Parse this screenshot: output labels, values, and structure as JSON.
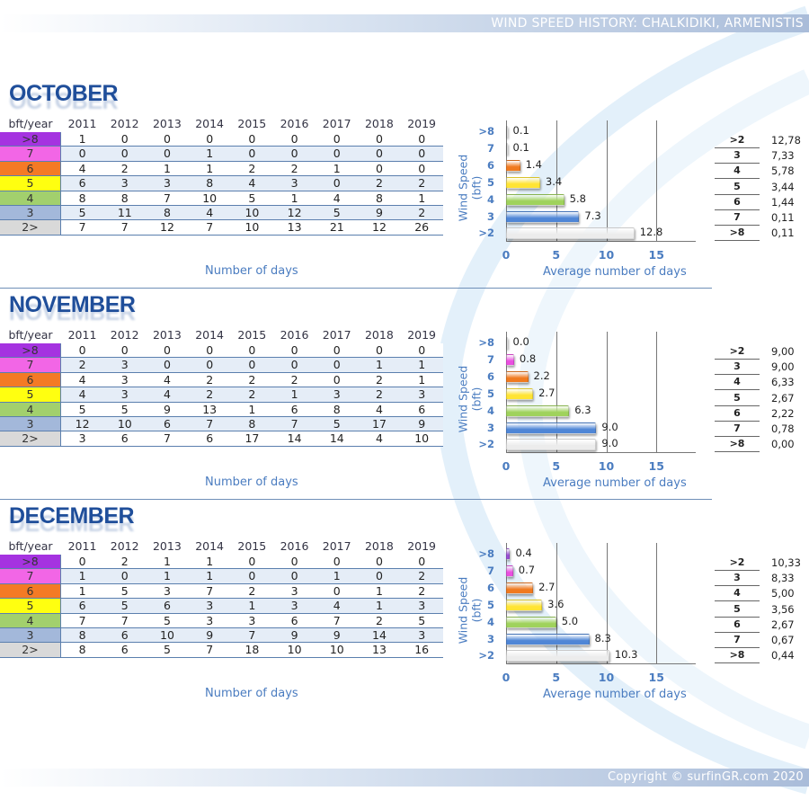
{
  "header": {
    "title": "WIND SPEED HISTORY: CHALKIDIKI, ARMENISTIS"
  },
  "footer": {
    "copyright": "Copyright © surfinGR.com 2020"
  },
  "table_header": "bft/year",
  "years": [
    "2011",
    "2012",
    "2013",
    "2014",
    "2015",
    "2016",
    "2017",
    "2018",
    "2019"
  ],
  "row_labels": [
    ">8",
    "7",
    "6",
    "5",
    "4",
    "3",
    "2>"
  ],
  "row_colors": [
    "#a533e0",
    "#f266e6",
    "#f47a25",
    "#ffff10",
    "#a2d06d",
    "#a3b8da",
    "#d9d9d9"
  ],
  "xlabel_table": "Number of days",
  "chart_data": [
    {
      "type": "bar",
      "orientation": "horizontal",
      "title": "OCTOBER",
      "xlabel": "Average number of days",
      "ylabel": "Wind Speed (bft)",
      "xlim": [
        0,
        15
      ],
      "xticks": [
        "0",
        "5",
        "10",
        "15"
      ],
      "categories": [
        ">8",
        "7",
        "6",
        "5",
        "4",
        "3",
        ">2"
      ],
      "values": [
        0.1,
        0.1,
        1.4,
        3.4,
        5.8,
        7.3,
        12.8
      ],
      "value_labels": [
        "0.1",
        "0.1",
        "1.4",
        "3.4",
        "5.8",
        "7.3",
        "12.8"
      ],
      "table": [
        [
          1,
          0,
          0,
          0,
          0,
          0,
          0,
          0,
          0
        ],
        [
          0,
          0,
          0,
          1,
          0,
          0,
          0,
          0,
          0
        ],
        [
          4,
          2,
          1,
          1,
          2,
          2,
          1,
          0,
          0
        ],
        [
          6,
          3,
          3,
          8,
          4,
          3,
          0,
          2,
          2
        ],
        [
          8,
          8,
          7,
          10,
          5,
          1,
          4,
          8,
          1
        ],
        [
          5,
          11,
          8,
          4,
          10,
          12,
          5,
          9,
          2
        ],
        [
          7,
          7,
          12,
          7,
          10,
          13,
          21,
          12,
          26
        ]
      ],
      "summary": [
        [
          ">2",
          "12,78"
        ],
        [
          "3",
          "7,33"
        ],
        [
          "4",
          "5,78"
        ],
        [
          "5",
          "3,44"
        ],
        [
          "6",
          "1,44"
        ],
        [
          "7",
          "0,11"
        ],
        [
          ">8",
          "0,11"
        ]
      ]
    },
    {
      "type": "bar",
      "orientation": "horizontal",
      "title": "NOVEMBER",
      "xlabel": "Average number of days",
      "ylabel": "Wind Speed (bft)",
      "xlim": [
        0,
        15
      ],
      "xticks": [
        "0",
        "5",
        "10",
        "15"
      ],
      "categories": [
        ">8",
        "7",
        "6",
        "5",
        "4",
        "3",
        ">2"
      ],
      "values": [
        0.0,
        0.8,
        2.2,
        2.7,
        6.3,
        9.0,
        9.0
      ],
      "value_labels": [
        "0.0",
        "0.8",
        "2.2",
        "2.7",
        "6.3",
        "9.0",
        "9.0"
      ],
      "table": [
        [
          0,
          0,
          0,
          0,
          0,
          0,
          0,
          0,
          0
        ],
        [
          2,
          3,
          0,
          0,
          0,
          0,
          0,
          1,
          1
        ],
        [
          4,
          3,
          4,
          2,
          2,
          2,
          0,
          2,
          1
        ],
        [
          4,
          3,
          4,
          2,
          2,
          1,
          3,
          2,
          3
        ],
        [
          5,
          5,
          9,
          13,
          1,
          6,
          8,
          4,
          6
        ],
        [
          12,
          10,
          6,
          7,
          8,
          7,
          5,
          17,
          9
        ],
        [
          3,
          6,
          7,
          6,
          17,
          14,
          14,
          4,
          10
        ]
      ],
      "summary": [
        [
          ">2",
          "9,00"
        ],
        [
          "3",
          "9,00"
        ],
        [
          "4",
          "6,33"
        ],
        [
          "5",
          "2,67"
        ],
        [
          "6",
          "2,22"
        ],
        [
          "7",
          "0,78"
        ],
        [
          ">8",
          "0,00"
        ]
      ]
    },
    {
      "type": "bar",
      "orientation": "horizontal",
      "title": "DECEMBER",
      "xlabel": "Average number of days",
      "ylabel": "Wind Speed (bft)",
      "xlim": [
        0,
        15
      ],
      "xticks": [
        "0",
        "5",
        "10",
        "15"
      ],
      "categories": [
        ">8",
        "7",
        "6",
        "5",
        "4",
        "3",
        ">2"
      ],
      "values": [
        0.4,
        0.7,
        2.7,
        3.6,
        5.0,
        8.3,
        10.3
      ],
      "value_labels": [
        "0.4",
        "0.7",
        "2.7",
        "3.6",
        "5.0",
        "8.3",
        "10.3"
      ],
      "table": [
        [
          0,
          2,
          1,
          1,
          0,
          0,
          0,
          0,
          0
        ],
        [
          1,
          0,
          1,
          1,
          0,
          0,
          1,
          0,
          2
        ],
        [
          1,
          5,
          3,
          7,
          2,
          3,
          0,
          1,
          2
        ],
        [
          6,
          5,
          6,
          3,
          1,
          3,
          4,
          1,
          3
        ],
        [
          7,
          7,
          5,
          3,
          3,
          6,
          7,
          2,
          5
        ],
        [
          8,
          6,
          10,
          9,
          7,
          9,
          9,
          14,
          3
        ],
        [
          8,
          6,
          5,
          7,
          18,
          10,
          10,
          13,
          16
        ]
      ],
      "summary": [
        [
          ">2",
          "10,33"
        ],
        [
          "3",
          "8,33"
        ],
        [
          "4",
          "5,00"
        ],
        [
          "5",
          "3,56"
        ],
        [
          "6",
          "2,67"
        ],
        [
          "7",
          "0,67"
        ],
        [
          ">8",
          "0,44"
        ]
      ]
    }
  ],
  "bar_colors": [
    "#9b4fd6",
    "#ea4fe0",
    "#f07a1f",
    "#ffe433",
    "#9fd25c",
    "#4f86d6",
    "#ececec"
  ]
}
